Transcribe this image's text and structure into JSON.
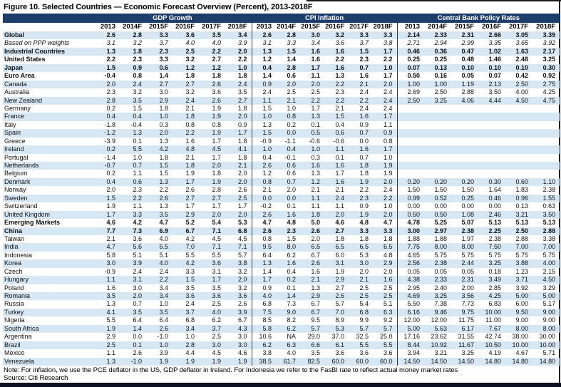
{
  "title": "Figure 10. Selected Countries — Economic Forecast Overview (Percent), 2013-2018F",
  "note": "Note: For inflation, we use the PCE deflator in the US, GDP deflator in Ireland. For Indonesia we refer to the FasBI rate to reflect actual money market rates",
  "source": "Source: Citi Research",
  "colors": {
    "header_navy": "#1d3d6b",
    "stripe_blue": "#d7e7f4",
    "frame_dark": "#0a0f1e"
  },
  "table": {
    "sections": [
      {
        "label": "GDP Growth"
      },
      {
        "label": "CPI Inflation"
      },
      {
        "label": "Central Bank Policy Rates"
      }
    ],
    "year_headers": [
      "2013",
      "2014F",
      "2015F",
      "2016F",
      "2017F",
      "2018F"
    ],
    "rows": [
      {
        "country": "Global",
        "style": "bold",
        "gdp": [
          "2.6",
          "2.8",
          "3.3",
          "3.6",
          "3.5",
          "3.4"
        ],
        "cpi": [
          "2.6",
          "2.8",
          "3.0",
          "3.2",
          "3.3",
          "3.3"
        ],
        "policy": [
          "2.14",
          "2.33",
          "2.31",
          "2.66",
          "3.05",
          "3.39"
        ]
      },
      {
        "country": "Based on PPP weights",
        "style": "italic",
        "gdp": [
          "3.1",
          "3.2",
          "3.7",
          "4.0",
          "4.0",
          "3.9"
        ],
        "cpi": [
          "3.1",
          "3.3",
          "3.4",
          "3.6",
          "3.7",
          "3.8"
        ],
        "policy": [
          "2.71",
          "2.94",
          "2.99",
          "3.35",
          "3.65",
          "3.92"
        ]
      },
      {
        "country": "Industrial Countries",
        "style": "bold",
        "gdp": [
          "1.3",
          "1.8",
          "2.3",
          "2.5",
          "2.2",
          "2.0"
        ],
        "cpi": [
          "1.3",
          "1.5",
          "1.6",
          "1.6",
          "1.5",
          "1.7"
        ],
        "policy": [
          "0.46",
          "0.36",
          "0.47",
          "1.02",
          "1.63",
          "2.17"
        ]
      },
      {
        "country": "United States",
        "style": "bold",
        "gdp": [
          "2.2",
          "2.3",
          "3.3",
          "3.2",
          "2.7",
          "2.2"
        ],
        "cpi": [
          "1.2",
          "1.4",
          "1.6",
          "2.2",
          "2.3",
          "2.2"
        ],
        "policy": [
          "0.25",
          "0.25",
          "0.48",
          "1.46",
          "2.48",
          "3.25"
        ]
      },
      {
        "country": "Japan",
        "style": "bold",
        "gdp": [
          "1.5",
          "0.9",
          "0.6",
          "1.2",
          "1.2",
          "1.0"
        ],
        "cpi": [
          "0.4",
          "2.8",
          "1.7",
          "1.6",
          "0.7",
          "1.0"
        ],
        "policy": [
          "0.07",
          "0.13",
          "0.10",
          "0.10",
          "0.10",
          "0.30"
        ]
      },
      {
        "country": "Euro Area",
        "style": "bold",
        "gdp": [
          "-0.4",
          "0.8",
          "1.4",
          "1.8",
          "1.8",
          "1.8"
        ],
        "cpi": [
          "1.4",
          "0.6",
          "1.1",
          "1.3",
          "1.6",
          "1.7"
        ],
        "policy": [
          "0.50",
          "0.16",
          "0.05",
          "0.07",
          "0.42",
          "0.92"
        ]
      },
      {
        "country": "Canada",
        "style": "",
        "gdp": [
          "2.0",
          "2.4",
          "2.7",
          "2.7",
          "2.6",
          "2.4"
        ],
        "cpi": [
          "0.9",
          "2.0",
          "2.0",
          "2.2",
          "2.1",
          "2.0"
        ],
        "policy": [
          "1.00",
          "1.00",
          "1.19",
          "2.13",
          "2.50",
          "2.75"
        ]
      },
      {
        "country": "Australia",
        "style": "",
        "gdp": [
          "2.3",
          "3.2",
          "3.0",
          "3.2",
          "3.6",
          "3.5"
        ],
        "cpi": [
          "2.4",
          "2.5",
          "2.5",
          "2.3",
          "2.4",
          "2.4"
        ],
        "policy": [
          "2.69",
          "2.50",
          "2.88",
          "3.50",
          "4.00",
          "4.25"
        ]
      },
      {
        "country": "New Zealand",
        "style": "",
        "gdp": [
          "2.8",
          "3.5",
          "2.9",
          "2.4",
          "2.6",
          "2.7"
        ],
        "cpi": [
          "1.1",
          "2.1",
          "2.2",
          "2.2",
          "2.2",
          "2.4"
        ],
        "policy": [
          "2.50",
          "3.25",
          "4.06",
          "4.44",
          "4.50",
          "4.75"
        ]
      },
      {
        "country": "Germany",
        "style": "",
        "gdp": [
          "0.2",
          "1.5",
          "1.8",
          "2.1",
          "1.9",
          "1.8"
        ],
        "cpi": [
          "1.5",
          "1.0",
          "1.7",
          "2.1",
          "2.4",
          "2.4"
        ],
        "policy": [
          "",
          "",
          "",
          "",
          "",
          ""
        ]
      },
      {
        "country": "France",
        "style": "",
        "gdp": [
          "0.4",
          "0.4",
          "1.0",
          "1.8",
          "1.9",
          "2.0"
        ],
        "cpi": [
          "1.0",
          "0.8",
          "1.3",
          "1.5",
          "1.6",
          "1.7"
        ],
        "policy": [
          "",
          "",
          "",
          "",
          "",
          ""
        ]
      },
      {
        "country": "Italy",
        "style": "",
        "gdp": [
          "-1.8",
          "-0.4",
          "0.3",
          "0.8",
          "0.8",
          "0.9"
        ],
        "cpi": [
          "1.3",
          "0.2",
          "0.1",
          "0.4",
          "0.9",
          "1.1"
        ],
        "policy": [
          "",
          "",
          "",
          "",
          "",
          ""
        ]
      },
      {
        "country": "Spain",
        "style": "",
        "gdp": [
          "-1.2",
          "1.3",
          "2.0",
          "2.2",
          "1.9",
          "1.7"
        ],
        "cpi": [
          "1.5",
          "0.0",
          "0.5",
          "0.6",
          "0.7",
          "0.9"
        ],
        "policy": [
          "",
          "",
          "",
          "",
          "",
          ""
        ]
      },
      {
        "country": "Greece",
        "style": "",
        "gdp": [
          "-3.9",
          "0.1",
          "1.3",
          "1.6",
          "1.7",
          "1.8"
        ],
        "cpi": [
          "-0.9",
          "-1.1",
          "-0.6",
          "-0.6",
          "0.0",
          "0.8"
        ],
        "policy": [
          "",
          "",
          "",
          "",
          "",
          ""
        ]
      },
      {
        "country": "Ireland",
        "style": "",
        "gdp": [
          "0.2",
          "5.5",
          "4.2",
          "4.8",
          "4.5",
          "4.1"
        ],
        "cpi": [
          "1.0",
          "0.4",
          "1.0",
          "1.1",
          "1.6",
          "1.7"
        ],
        "policy": [
          "",
          "",
          "",
          "",
          "",
          ""
        ]
      },
      {
        "country": "Portugal",
        "style": "",
        "gdp": [
          "-1.4",
          "1.0",
          "1.8",
          "2.1",
          "1.7",
          "1.8"
        ],
        "cpi": [
          "0.4",
          "-0.1",
          "0.3",
          "0.1",
          "0.7",
          "1.0"
        ],
        "policy": [
          "",
          "",
          "",
          "",
          "",
          ""
        ]
      },
      {
        "country": "Netherlands",
        "style": "",
        "gdp": [
          "-0.7",
          "0.7",
          "1.5",
          "1.8",
          "2.0",
          "2.1"
        ],
        "cpi": [
          "2.6",
          "0.6",
          "1.6",
          "1.6",
          "1.8",
          "1.9"
        ],
        "policy": [
          "",
          "",
          "",
          "",
          "",
          ""
        ]
      },
      {
        "country": "Belgium",
        "style": "",
        "gdp": [
          "0.2",
          "1.1",
          "1.5",
          "1.9",
          "1.8",
          "2.0"
        ],
        "cpi": [
          "1.2",
          "0.6",
          "1.3",
          "1.7",
          "1.8",
          "1.9"
        ],
        "policy": [
          "",
          "",
          "",
          "",
          "",
          ""
        ]
      },
      {
        "country": "Denmark",
        "style": "",
        "gdp": [
          "0.4",
          "0.6",
          "1.3",
          "1.7",
          "1.9",
          "2.0"
        ],
        "cpi": [
          "0.8",
          "0.7",
          "1.2",
          "1.6",
          "1.9",
          "2.0"
        ],
        "policy": [
          "0.20",
          "0.20",
          "0.20",
          "0.30",
          "0.60",
          "1.10"
        ]
      },
      {
        "country": "Norway",
        "style": "",
        "gdp": [
          "2.0",
          "2.3",
          "2.2",
          "2.6",
          "2.8",
          "2.6"
        ],
        "cpi": [
          "2.1",
          "2.0",
          "2.1",
          "2.1",
          "2.2",
          "2.4"
        ],
        "policy": [
          "1.50",
          "1.50",
          "1.50",
          "1.64",
          "1.83",
          "2.38"
        ]
      },
      {
        "country": "Sweden",
        "style": "",
        "gdp": [
          "1.5",
          "2.2",
          "2.6",
          "2.7",
          "2.7",
          "2.5"
        ],
        "cpi": [
          "0.0",
          "0.0",
          "1.1",
          "2.4",
          "2.3",
          "2.2"
        ],
        "policy": [
          "0.99",
          "0.52",
          "0.25",
          "0.46",
          "0.96",
          "1.55"
        ]
      },
      {
        "country": "Switzerland",
        "style": "",
        "gdp": [
          "1.9",
          "1.1",
          "1.3",
          "1.7",
          "1.7",
          "1.7"
        ],
        "cpi": [
          "-0.2",
          "0.1",
          "1.1",
          "1.1",
          "0.9",
          "1.0"
        ],
        "policy": [
          "0.00",
          "0.00",
          "0.00",
          "0.00",
          "0.13",
          "0.63"
        ]
      },
      {
        "country": "United Kingdom",
        "style": "",
        "gdp": [
          "1.7",
          "3.3",
          "3.5",
          "2.9",
          "2.0",
          "2.0"
        ],
        "cpi": [
          "2.6",
          "1.6",
          "1.8",
          "2.0",
          "1.9",
          "2.0"
        ],
        "policy": [
          "0.50",
          "0.50",
          "1.08",
          "2.46",
          "3.21",
          "3.50"
        ]
      },
      {
        "country": "Emerging Markets",
        "style": "bold",
        "gdp": [
          "4.6",
          "4.2",
          "4.7",
          "5.2",
          "5.4",
          "5.3"
        ],
        "cpi": [
          "4.7",
          "4.8",
          "5.0",
          "4.6",
          "4.8",
          "4.7"
        ],
        "policy": [
          "4.78",
          "5.25",
          "5.07",
          "5.13",
          "5.13",
          "5.13"
        ]
      },
      {
        "country": "China",
        "style": "bold",
        "gdp": [
          "7.7",
          "7.3",
          "6.9",
          "6.7",
          "7.1",
          "6.8"
        ],
        "cpi": [
          "2.6",
          "2.3",
          "2.6",
          "2.7",
          "3.3",
          "3.3"
        ],
        "policy": [
          "3.00",
          "2.97",
          "2.38",
          "2.25",
          "2.50",
          "2.88"
        ]
      },
      {
        "country": "Taiwan",
        "style": "",
        "gdp": [
          "2.1",
          "3.6",
          "4.0",
          "4.2",
          "4.5",
          "4.5"
        ],
        "cpi": [
          "0.8",
          "1.5",
          "2.0",
          "1.8",
          "1.8",
          "1.8"
        ],
        "policy": [
          "1.88",
          "1.88",
          "1.97",
          "2.38",
          "2.88",
          "3.38"
        ]
      },
      {
        "country": "India",
        "style": "",
        "gdp": [
          "4.7",
          "5.6",
          "6.5",
          "7.0",
          "7.1",
          "7.1"
        ],
        "cpi": [
          "9.5",
          "8.0",
          "6.5",
          "6.5",
          "6.5",
          "6.5"
        ],
        "policy": [
          "7.75",
          "8.00",
          "8.00",
          "7.50",
          "7.00",
          "7.00"
        ]
      },
      {
        "country": "Indonesia",
        "style": "",
        "gdp": [
          "5.8",
          "5.1",
          "5.1",
          "5.5",
          "5.5",
          "5.7"
        ],
        "cpi": [
          "6.4",
          "6.2",
          "6.7",
          "6.0",
          "5.3",
          "4.8"
        ],
        "policy": [
          "4.65",
          "5.75",
          "5.75",
          "5.75",
          "5.75",
          "5.75"
        ]
      },
      {
        "country": "Korea",
        "style": "",
        "gdp": [
          "3.0",
          "3.9",
          "4.0",
          "4.2",
          "3.6",
          "3.8"
        ],
        "cpi": [
          "1.3",
          "1.6",
          "2.6",
          "3.1",
          "3.0",
          "2.9"
        ],
        "policy": [
          "2.56",
          "2.38",
          "2.44",
          "3.25",
          "3.88",
          "4.00"
        ]
      },
      {
        "country": "Czech",
        "style": "",
        "gdp": [
          "-0.9",
          "2.4",
          "2.4",
          "3.3",
          "3.1",
          "3.2"
        ],
        "cpi": [
          "1.4",
          "0.4",
          "1.6",
          "1.9",
          "2.0",
          "2.0"
        ],
        "policy": [
          "0.05",
          "0.05",
          "0.05",
          "0.18",
          "1.23",
          "2.15"
        ]
      },
      {
        "country": "Hungary",
        "style": "",
        "gdp": [
          "1.1",
          "3.1",
          "2.2",
          "1.5",
          "1.7",
          "2.0"
        ],
        "cpi": [
          "1.7",
          "0.2",
          "2.1",
          "2.9",
          "2.1",
          "1.6"
        ],
        "policy": [
          "4.38",
          "2.33",
          "2.31",
          "3.49",
          "3.71",
          "4.50"
        ]
      },
      {
        "country": "Poland",
        "style": "",
        "gdp": [
          "1.6",
          "3.0",
          "3.4",
          "3.5",
          "3.5",
          "3.2"
        ],
        "cpi": [
          "0.9",
          "0.1",
          "1.3",
          "2.7",
          "2.5",
          "2.5"
        ],
        "policy": [
          "2.95",
          "2.40",
          "2.00",
          "2.85",
          "3.92",
          "3.29"
        ]
      },
      {
        "country": "Romania",
        "style": "",
        "gdp": [
          "3.5",
          "2.0",
          "3.4",
          "3.6",
          "3.6",
          "3.6"
        ],
        "cpi": [
          "4.0",
          "1.4",
          "2.9",
          "2.6",
          "2.5",
          "2.5"
        ],
        "policy": [
          "4.69",
          "3.25",
          "3.56",
          "4.25",
          "5.00",
          "5.00"
        ]
      },
      {
        "country": "Russia",
        "style": "",
        "gdp": [
          "1.3",
          "0.7",
          "1.0",
          "2.4",
          "2.5",
          "2.6"
        ],
        "cpi": [
          "6.8",
          "7.3",
          "6.7",
          "5.7",
          "5.4",
          "5.1"
        ],
        "policy": [
          "5.50",
          "7.38",
          "7.73",
          "6.83",
          "6.00",
          "5.17"
        ]
      },
      {
        "country": "Turkey",
        "style": "",
        "gdp": [
          "4.1",
          "3.5",
          "3.5",
          "3.7",
          "4.0",
          "3.9"
        ],
        "cpi": [
          "7.5",
          "9.0",
          "6.7",
          "7.0",
          "6.8",
          "6.3"
        ],
        "policy": [
          "6.16",
          "9.46",
          "9.75",
          "10.00",
          "9.50",
          "9.00"
        ]
      },
      {
        "country": "Nigeria",
        "style": "",
        "gdp": [
          "5.5",
          "6.4",
          "6.4",
          "6.8",
          "6.2",
          "6.7"
        ],
        "cpi": [
          "8.5",
          "8.2",
          "9.5",
          "8.9",
          "9.9",
          "9.2"
        ],
        "policy": [
          "12.00",
          "12.00",
          "11.75",
          "11.00",
          "9.00",
          "9.00"
        ]
      },
      {
        "country": "South Africa",
        "style": "",
        "gdp": [
          "1.9",
          "1.4",
          "2.6",
          "3.4",
          "3.7",
          "4.3"
        ],
        "cpi": [
          "5.8",
          "6.2",
          "5.7",
          "5.3",
          "5.7",
          "5.7"
        ],
        "policy": [
          "5.00",
          "5.63",
          "6.17",
          "7.67",
          "8.00",
          "8.00"
        ]
      },
      {
        "country": "Argentina",
        "style": "",
        "gdp": [
          "2.9",
          "0.0",
          "-1.0",
          "1.0",
          "2.5",
          "3.0"
        ],
        "cpi": [
          "10.6",
          "NA",
          "29.0",
          "37.0",
          "32.5",
          "25.0"
        ],
        "policy": [
          "17.16",
          "23.62",
          "31.55",
          "42.74",
          "38.00",
          "30.00"
        ]
      },
      {
        "country": "Brazil",
        "style": "",
        "gdp": [
          "2.5",
          "0.1",
          "1.0",
          "2.8",
          "3.0",
          "3.0"
        ],
        "cpi": [
          "6.2",
          "6.3",
          "6.6",
          "6.1",
          "5.5",
          "5.5"
        ],
        "policy": [
          "8.44",
          "10.92",
          "11.67",
          "10.50",
          "10.00",
          "10.00"
        ]
      },
      {
        "country": "Mexico",
        "style": "",
        "gdp": [
          "1.1",
          "2.6",
          "3.9",
          "4.4",
          "4.5",
          "4.6"
        ],
        "cpi": [
          "3.8",
          "4.0",
          "3.5",
          "3.6",
          "3.6",
          "3.6"
        ],
        "policy": [
          "3.94",
          "3.21",
          "3.25",
          "4.19",
          "4.67",
          "5.71"
        ]
      },
      {
        "country": "Venezuela",
        "style": "",
        "gdp": [
          "1.3",
          "-1.0",
          "1.9",
          "1.9",
          "1.9",
          "1.9"
        ],
        "cpi": [
          "38.5",
          "61.7",
          "82.5",
          "60.0",
          "60.0",
          "60.0"
        ],
        "policy": [
          "14.50",
          "14.50",
          "14.50",
          "14.80",
          "14.80",
          "14.80"
        ]
      }
    ]
  }
}
